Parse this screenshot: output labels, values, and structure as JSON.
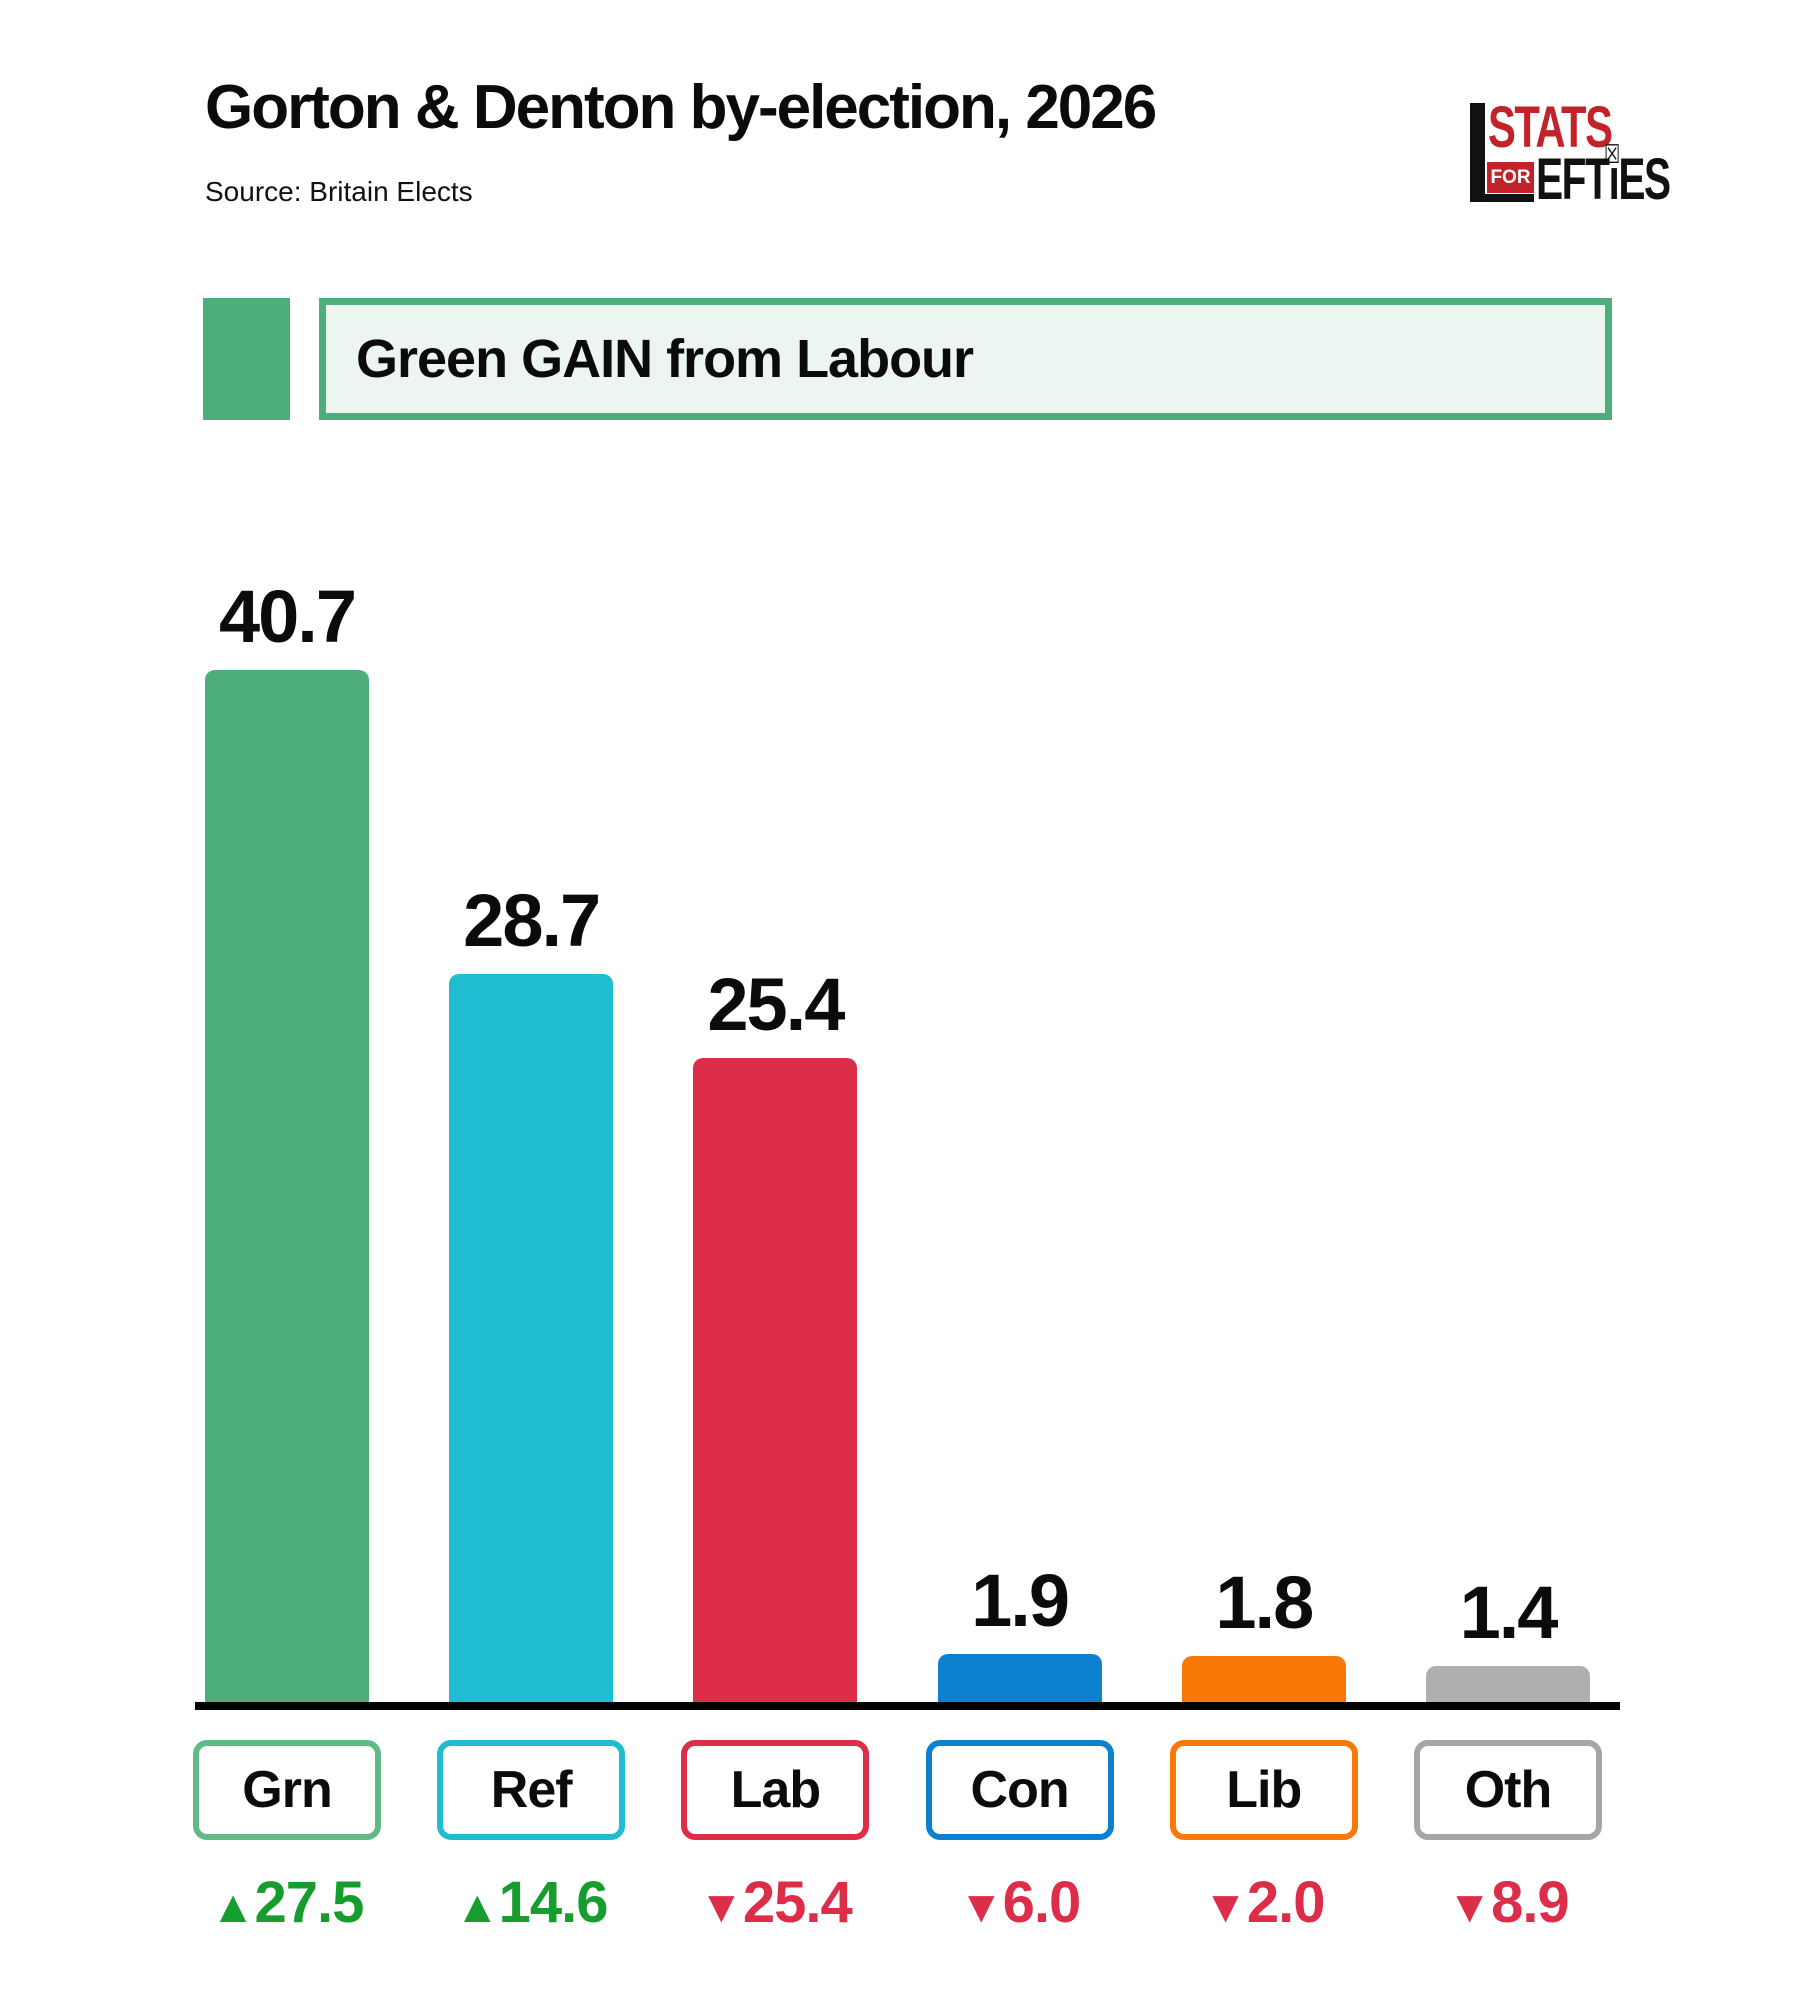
{
  "header": {
    "title": "Gorton & Denton by-election, 2026",
    "source": "Source: Britain Elects"
  },
  "logo": {
    "line1": "STATS",
    "for_label": "FOR",
    "line2_pre": "EFT",
    "line2_i": "ı",
    "line2_post": "ES",
    "ballot_icon": "☒",
    "red_color": "#C2232A"
  },
  "banner": {
    "text": "Green GAIN from Labour",
    "accent_color": "#4DAE7C",
    "fill_color": "#ECF5F0"
  },
  "chart_data": {
    "type": "bar",
    "title": "Gorton & Denton by-election, 2026",
    "categories": [
      "Grn",
      "Ref",
      "Lab",
      "Con",
      "Lib",
      "Oth"
    ],
    "values": [
      40.7,
      28.7,
      25.4,
      1.9,
      1.8,
      1.4
    ],
    "change_values": [
      27.5,
      14.6,
      -25.4,
      -6.0,
      -2.0,
      -8.9
    ],
    "change_labels": [
      "27.5",
      "14.6",
      "25.4",
      "6.0",
      "2.0",
      "8.9"
    ],
    "change_dirs": [
      "up",
      "up",
      "down",
      "down",
      "down",
      "down"
    ],
    "bar_colors": [
      "#4DAE7C",
      "#1FBCD2",
      "#DC2D49",
      "#0E80D0",
      "#F97908",
      "#AFAFAF"
    ],
    "box_border_colors": [
      "#61B983",
      "#1FBCD2",
      "#DC2D49",
      "#0E80D0",
      "#F97908",
      "#A6A6A6"
    ],
    "up_color": "#169D2E",
    "down_color": "#DC2D49",
    "icons": {
      "up": "▲",
      "down": "▼"
    },
    "ylim": [
      0,
      44
    ],
    "grid": false,
    "value_labels": true,
    "legend": "none",
    "xlabel": "",
    "ylabel": ""
  }
}
